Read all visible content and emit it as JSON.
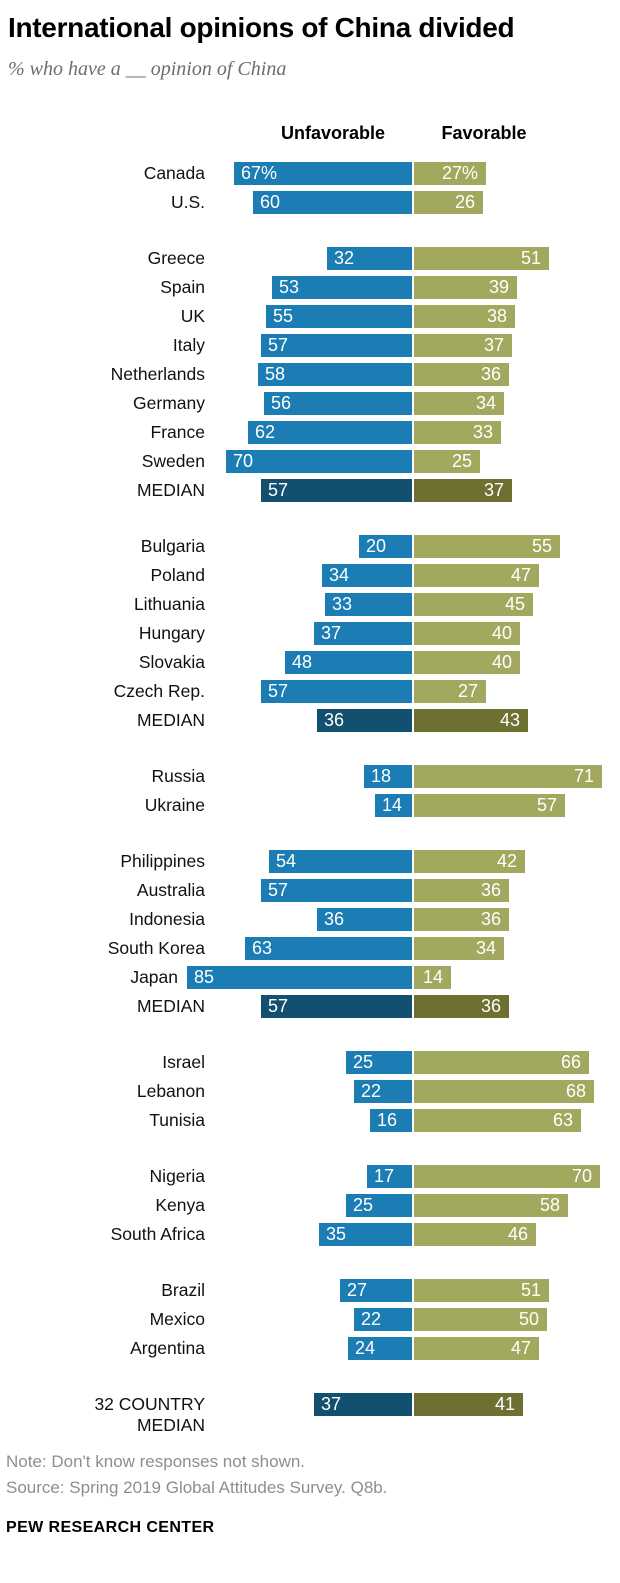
{
  "title": "International opinions of China divided",
  "subtitle": "% who have a __ opinion of China",
  "columns": {
    "unfavorable": "Unfavorable",
    "favorable": "Favorable"
  },
  "colors": {
    "unfavorable": "#1b7db3",
    "favorable": "#a2a95e",
    "unfavorable_median": "#134f6e",
    "favorable_median": "#6d7031",
    "value_text": "#ffffff"
  },
  "chart_data": {
    "type": "bar",
    "variant": "diverging-horizontal",
    "unit": "%",
    "axis": {
      "min": 0,
      "max": 100
    },
    "legend": [
      "Unfavorable",
      "Favorable"
    ],
    "groups": [
      {
        "rows": [
          {
            "label": "Canada",
            "unfavorable": 67,
            "favorable": 27,
            "unfavorable_text": "67%",
            "favorable_text": "27%"
          },
          {
            "label": "U.S.",
            "unfavorable": 60,
            "favorable": 26
          }
        ]
      },
      {
        "rows": [
          {
            "label": "Greece",
            "unfavorable": 32,
            "favorable": 51
          },
          {
            "label": "Spain",
            "unfavorable": 53,
            "favorable": 39
          },
          {
            "label": "UK",
            "unfavorable": 55,
            "favorable": 38
          },
          {
            "label": "Italy",
            "unfavorable": 57,
            "favorable": 37
          },
          {
            "label": "Netherlands",
            "unfavorable": 58,
            "favorable": 36
          },
          {
            "label": "Germany",
            "unfavorable": 56,
            "favorable": 34
          },
          {
            "label": "France",
            "unfavorable": 62,
            "favorable": 33
          },
          {
            "label": "Sweden",
            "unfavorable": 70,
            "favorable": 25
          },
          {
            "label": "MEDIAN",
            "unfavorable": 57,
            "favorable": 37,
            "median": true
          }
        ]
      },
      {
        "rows": [
          {
            "label": "Bulgaria",
            "unfavorable": 20,
            "favorable": 55
          },
          {
            "label": "Poland",
            "unfavorable": 34,
            "favorable": 47
          },
          {
            "label": "Lithuania",
            "unfavorable": 33,
            "favorable": 45
          },
          {
            "label": "Hungary",
            "unfavorable": 37,
            "favorable": 40
          },
          {
            "label": "Slovakia",
            "unfavorable": 48,
            "favorable": 40
          },
          {
            "label": "Czech Rep.",
            "unfavorable": 57,
            "favorable": 27
          },
          {
            "label": "MEDIAN",
            "unfavorable": 36,
            "favorable": 43,
            "median": true
          }
        ]
      },
      {
        "rows": [
          {
            "label": "Russia",
            "unfavorable": 18,
            "favorable": 71
          },
          {
            "label": "Ukraine",
            "unfavorable": 14,
            "favorable": 57
          }
        ]
      },
      {
        "rows": [
          {
            "label": "Philippines",
            "unfavorable": 54,
            "favorable": 42
          },
          {
            "label": "Australia",
            "unfavorable": 57,
            "favorable": 36
          },
          {
            "label": "Indonesia",
            "unfavorable": 36,
            "favorable": 36
          },
          {
            "label": "South Korea",
            "unfavorable": 63,
            "favorable": 34
          },
          {
            "label": "Japan",
            "unfavorable": 85,
            "favorable": 14
          },
          {
            "label": "MEDIAN",
            "unfavorable": 57,
            "favorable": 36,
            "median": true
          }
        ]
      },
      {
        "rows": [
          {
            "label": "Israel",
            "unfavorable": 25,
            "favorable": 66
          },
          {
            "label": "Lebanon",
            "unfavorable": 22,
            "favorable": 68
          },
          {
            "label": "Tunisia",
            "unfavorable": 16,
            "favorable": 63
          }
        ]
      },
      {
        "rows": [
          {
            "label": "Nigeria",
            "unfavorable": 17,
            "favorable": 70
          },
          {
            "label": "Kenya",
            "unfavorable": 25,
            "favorable": 58
          },
          {
            "label": "South Africa",
            "unfavorable": 35,
            "favorable": 46
          }
        ]
      },
      {
        "rows": [
          {
            "label": "Brazil",
            "unfavorable": 27,
            "favorable": 51
          },
          {
            "label": "Mexico",
            "unfavorable": 22,
            "favorable": 50
          },
          {
            "label": "Argentina",
            "unfavorable": 24,
            "favorable": 47
          }
        ]
      },
      {
        "rows": [
          {
            "label": "32 COUNTRY\nMEDIAN",
            "unfavorable": 37,
            "favorable": 41,
            "median": true
          }
        ]
      }
    ]
  },
  "footer": {
    "note": "Note: Don't know responses not shown.",
    "source": "Source: Spring 2019 Global Attitudes Survey. Q8b.",
    "brand": "PEW RESEARCH CENTER"
  }
}
